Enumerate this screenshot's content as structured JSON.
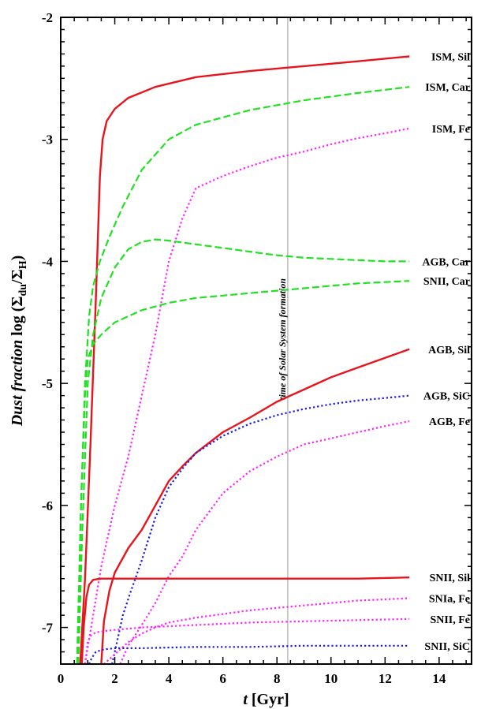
{
  "chart_data": {
    "type": "line",
    "xlim": [
      0,
      15.2
    ],
    "ylim": [
      -7.3,
      -2
    ],
    "x_ticks": [
      0,
      2,
      4,
      6,
      8,
      10,
      12,
      14
    ],
    "y_ticks": [
      -2,
      -3,
      -4,
      -5,
      -6,
      -7
    ],
    "x_tick_labels": [
      "0",
      "2",
      "4",
      "6",
      "8",
      "10",
      "12",
      "14"
    ],
    "y_tick_labels": [
      "-2",
      "-3",
      "-4",
      "-5",
      "-6",
      "-7"
    ],
    "xlabel_italic": "t",
    "xlabel_rest": " [Gyr]",
    "ylabel_italic": "Dust fraction",
    "ylabel_prefix": " log (Σ",
    "ylabel_sub1": "du",
    "ylabel_mid": "/Σ",
    "ylabel_sub2": "H",
    "ylabel_suffix": ")",
    "annotation": {
      "text": "time of Solar System formation",
      "x": 8.4
    },
    "series": [
      {
        "name": "ISM, Sil",
        "color": "#e8141c",
        "style": "solid",
        "x": [
          0.72,
          0.9,
          1.1,
          1.3,
          1.45,
          1.55,
          1.7,
          2.0,
          2.5,
          3.5,
          5,
          7,
          9,
          11,
          12.9
        ],
        "y": [
          -7.3,
          -6.6,
          -5.5,
          -4.3,
          -3.3,
          -3.0,
          -2.85,
          -2.75,
          -2.66,
          -2.57,
          -2.49,
          -2.44,
          -2.4,
          -2.36,
          -2.32
        ]
      },
      {
        "name": "ISM, Car",
        "color": "#22e022",
        "style": "dashed",
        "x": [
          0.6,
          0.75,
          0.9,
          1.05,
          1.2,
          1.45,
          1.8,
          2.3,
          3,
          4,
          5,
          7,
          9,
          11,
          12.9
        ],
        "y": [
          -7.3,
          -6.0,
          -5.0,
          -4.45,
          -4.2,
          -4.0,
          -3.8,
          -3.55,
          -3.25,
          -3.0,
          -2.88,
          -2.76,
          -2.68,
          -2.62,
          -2.57
        ]
      },
      {
        "name": "ISM, Fe",
        "color": "#ff22ff",
        "style": "dotted",
        "x": [
          0.9,
          1.2,
          1.5,
          2.0,
          2.5,
          3.0,
          3.5,
          4.0,
          4.5,
          5,
          6,
          7,
          8,
          9,
          10,
          11,
          12,
          12.9
        ],
        "y": [
          -7.3,
          -6.9,
          -6.5,
          -6.0,
          -5.6,
          -5.1,
          -4.6,
          -4.0,
          -3.65,
          -3.4,
          -3.3,
          -3.22,
          -3.15,
          -3.1,
          -3.04,
          -2.99,
          -2.95,
          -2.91
        ]
      },
      {
        "name": "AGB, Car",
        "color": "#22e022",
        "style": "dashed",
        "x": [
          0.65,
          0.8,
          1.0,
          1.2,
          1.5,
          2.0,
          2.5,
          3.0,
          3.5,
          4.0,
          5,
          6,
          7,
          8,
          9,
          10,
          11,
          12,
          12.9
        ],
        "y": [
          -7.3,
          -6.2,
          -5.0,
          -4.6,
          -4.3,
          -4.05,
          -3.9,
          -3.84,
          -3.82,
          -3.83,
          -3.86,
          -3.89,
          -3.92,
          -3.95,
          -3.97,
          -3.98,
          -3.99,
          -4.0,
          -4.0
        ]
      },
      {
        "name": "SNII, Car",
        "color": "#22e022",
        "style": "dashed",
        "x": [
          0.62,
          0.75,
          0.9,
          1.0,
          1.2,
          1.5,
          2.0,
          3.0,
          4.0,
          5,
          6,
          7,
          8,
          9,
          10,
          11,
          12,
          12.9
        ],
        "y": [
          -7.3,
          -6.0,
          -5.1,
          -4.8,
          -4.68,
          -4.6,
          -4.5,
          -4.4,
          -4.34,
          -4.3,
          -4.28,
          -4.26,
          -4.24,
          -4.22,
          -4.2,
          -4.18,
          -4.17,
          -4.16
        ]
      },
      {
        "name": "AGB, Sil",
        "color": "#e8141c",
        "style": "solid",
        "x": [
          1.5,
          1.6,
          1.8,
          2.0,
          2.5,
          3.0,
          3.5,
          4.0,
          4.5,
          5,
          6,
          7,
          8,
          9,
          10,
          11,
          12,
          12.9
        ],
        "y": [
          -7.3,
          -6.95,
          -6.7,
          -6.55,
          -6.35,
          -6.2,
          -6.0,
          -5.8,
          -5.68,
          -5.57,
          -5.4,
          -5.28,
          -5.15,
          -5.05,
          -4.95,
          -4.87,
          -4.79,
          -4.72
        ]
      },
      {
        "name": "AGB, SiC",
        "color": "#1a1ae6",
        "style": "dotted",
        "x": [
          1.9,
          2.1,
          2.3,
          2.6,
          3.0,
          3.5,
          4.0,
          4.5,
          5,
          6,
          7,
          8,
          9,
          10,
          11,
          12,
          12.9
        ],
        "y": [
          -7.3,
          -7.1,
          -6.9,
          -6.7,
          -6.45,
          -6.1,
          -5.85,
          -5.7,
          -5.57,
          -5.43,
          -5.33,
          -5.26,
          -5.21,
          -5.17,
          -5.14,
          -5.12,
          -5.1
        ]
      },
      {
        "name": "AGB, Fe",
        "color": "#ff22ff",
        "style": "dotted",
        "x": [
          2.2,
          2.5,
          3.0,
          3.5,
          4.0,
          4.5,
          5,
          6,
          7,
          8,
          9,
          10,
          11,
          12,
          12.9
        ],
        "y": [
          -7.3,
          -7.15,
          -6.98,
          -6.8,
          -6.58,
          -6.42,
          -6.2,
          -5.9,
          -5.72,
          -5.6,
          -5.5,
          -5.45,
          -5.4,
          -5.35,
          -5.31
        ]
      },
      {
        "name": "SNII, Sil",
        "color": "#e8141c",
        "style": "solid",
        "x": [
          0.78,
          0.85,
          0.95,
          1.05,
          1.2,
          1.5,
          2.0,
          3.0,
          5,
          7,
          9,
          11,
          12.9
        ],
        "y": [
          -7.3,
          -7.0,
          -6.75,
          -6.65,
          -6.61,
          -6.6,
          -6.6,
          -6.6,
          -6.6,
          -6.6,
          -6.6,
          -6.6,
          -6.59
        ]
      },
      {
        "name": "SNIa, Fe",
        "color": "#ff22ff",
        "style": "dotted",
        "x": [
          1.6,
          2.0,
          2.5,
          3.0,
          3.5,
          4.0,
          5,
          6,
          7,
          8,
          9,
          10,
          11,
          12,
          12.9
        ],
        "y": [
          -7.3,
          -7.22,
          -7.12,
          -7.05,
          -7.0,
          -6.96,
          -6.92,
          -6.89,
          -6.86,
          -6.84,
          -6.82,
          -6.8,
          -6.78,
          -6.77,
          -6.76
        ]
      },
      {
        "name": "SNII, Fe",
        "color": "#ff22ff",
        "style": "dotted",
        "x": [
          0.9,
          1.0,
          1.1,
          1.3,
          1.6,
          2.0,
          3.0,
          5,
          7,
          9,
          11,
          12.9
        ],
        "y": [
          -7.3,
          -7.12,
          -7.07,
          -7.04,
          -7.03,
          -7.02,
          -7.0,
          -6.98,
          -6.96,
          -6.95,
          -6.94,
          -6.93
        ]
      },
      {
        "name": "SNII, SiC",
        "color": "#1a1ae6",
        "style": "dotted",
        "x": [
          1.05,
          1.15,
          1.3,
          1.6,
          2.0,
          3.0,
          5,
          7,
          9,
          11,
          12.9
        ],
        "y": [
          -7.3,
          -7.25,
          -7.2,
          -7.18,
          -7.17,
          -7.17,
          -7.16,
          -7.16,
          -7.15,
          -7.15,
          -7.15
        ]
      }
    ]
  }
}
